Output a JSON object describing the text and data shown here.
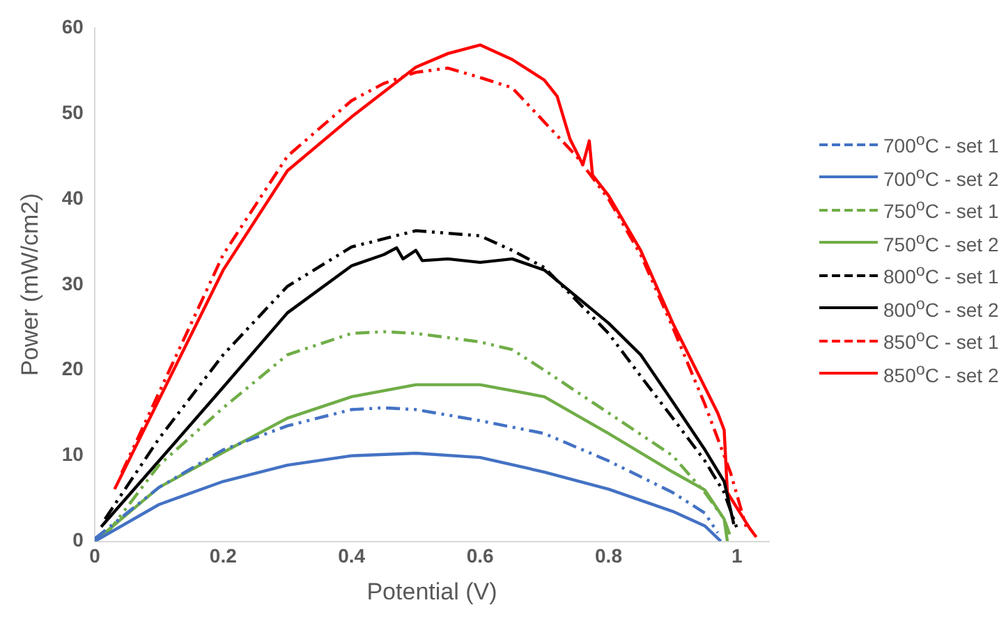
{
  "chart_data": {
    "type": "line",
    "xlabel": "Potential (V)",
    "ylabel": "Power (mW/cm2)",
    "xlim": [
      0,
      1.05
    ],
    "xticks": [
      0,
      0.2,
      0.4,
      0.6,
      0.8,
      {
        "value": 1,
        "label": "1"
      }
    ],
    "ylim": [
      0,
      60
    ],
    "yticks": [
      0,
      10,
      20,
      30,
      40,
      50,
      60
    ],
    "grid": false,
    "legend": "right",
    "marker": "none",
    "series": [
      {
        "name": "700$^{o}$C - set 1",
        "color": "#4472c4",
        "line_style": "dashed",
        "x": [
          0,
          0.1,
          0.2,
          0.3,
          0.4,
          0.45,
          0.5,
          0.6,
          0.7,
          0.8,
          0.9,
          0.95,
          0.97
        ],
        "values": [
          0.3,
          6.3,
          10.7,
          13.5,
          15.4,
          15.6,
          15.4,
          14.1,
          12.6,
          9.4,
          5.7,
          3.3,
          1
        ]
      },
      {
        "name": "700$^{o}$C - set 2",
        "color": "#4472c4",
        "line_style": "solid",
        "x": [
          0,
          0.1,
          0.2,
          0.3,
          0.4,
          0.5,
          0.6,
          0.7,
          0.8,
          0.9,
          0.95,
          0.975
        ],
        "values": [
          0,
          4.3,
          7,
          8.9,
          10,
          10.3,
          9.8,
          8.1,
          6.1,
          3.5,
          1.8,
          0
        ]
      },
      {
        "name": "750$^{o}$C - set 1",
        "color": "#70ad47",
        "line_style": "dashed",
        "x": [
          0.02,
          0.1,
          0.2,
          0.3,
          0.4,
          0.45,
          0.5,
          0.6,
          0.65,
          0.7,
          0.8,
          0.9,
          0.95,
          0.98,
          0.99
        ],
        "values": [
          1,
          8.9,
          15.6,
          21.8,
          24.3,
          24.5,
          24.3,
          23.3,
          22.4,
          20,
          15,
          10,
          5.7,
          2.6,
          0.5
        ]
      },
      {
        "name": "750$^{o}$C - set 2",
        "color": "#70ad47",
        "line_style": "solid",
        "x": [
          0,
          0.1,
          0.2,
          0.3,
          0.4,
          0.5,
          0.6,
          0.7,
          0.8,
          0.9,
          0.95,
          0.98,
          0.985
        ],
        "values": [
          0,
          6.3,
          10.4,
          14.4,
          16.9,
          18.3,
          18.3,
          16.9,
          12.6,
          8.1,
          6,
          2.6,
          0
        ]
      },
      {
        "name": "800$^{o}$C - set 1",
        "color": "#000000",
        "line_style": "dashed",
        "x": [
          0.016,
          0.1,
          0.2,
          0.3,
          0.4,
          0.5,
          0.6,
          0.65,
          0.7,
          0.8,
          0.85,
          0.9,
          0.95,
          0.98,
          1
        ],
        "values": [
          2.6,
          12,
          21.8,
          29.8,
          34.4,
          36.3,
          35.7,
          34,
          32,
          24.3,
          19.3,
          14.4,
          9.4,
          5.7,
          1.5
        ]
      },
      {
        "name": "800$^{o}$C - set 2",
        "color": "#000000",
        "line_style": "solid",
        "x": [
          0.01,
          0.1,
          0.2,
          0.3,
          0.4,
          0.45,
          0.47,
          0.48,
          0.5,
          0.51,
          0.55,
          0.6,
          0.65,
          0.7,
          0.8,
          0.85,
          0.9,
          0.95,
          0.98,
          0.995
        ],
        "values": [
          1.7,
          9.4,
          18,
          26.7,
          32.2,
          33.5,
          34.3,
          33,
          34,
          32.8,
          33,
          32.6,
          33,
          31.7,
          25.5,
          21.8,
          16.3,
          10.7,
          7,
          2
        ]
      },
      {
        "name": "850$^{o}$C - set 1",
        "color": "#ff0000",
        "line_style": "dashed",
        "x": [
          0.042,
          0.2,
          0.3,
          0.4,
          0.45,
          0.5,
          0.55,
          0.6,
          0.65,
          0.7,
          0.75,
          0.8,
          0.85,
          0.9,
          0.95,
          0.99,
          1.015
        ],
        "values": [
          8,
          33.5,
          45,
          51.5,
          53.5,
          54.8,
          55.3,
          54.2,
          53,
          49,
          45,
          40,
          33.5,
          25,
          16,
          8,
          1.5
        ]
      },
      {
        "name": "850$^{o}$C - set 2",
        "color": "#ff0000",
        "line_style": "solid",
        "x": [
          0.031,
          0.2,
          0.3,
          0.4,
          0.5,
          0.55,
          0.6,
          0.65,
          0.7,
          0.72,
          0.74,
          0.76,
          0.77,
          0.775,
          0.8,
          0.85,
          0.9,
          0.95,
          0.97,
          0.98,
          0.985,
          1.02,
          1.03
        ],
        "values": [
          6.1,
          31.7,
          43.3,
          49.6,
          55.4,
          57,
          58,
          56.3,
          53.9,
          52,
          47,
          44,
          46.8,
          42.8,
          40.4,
          34,
          25.5,
          18,
          15,
          13,
          5.7,
          1.5,
          0.5
        ]
      }
    ]
  }
}
